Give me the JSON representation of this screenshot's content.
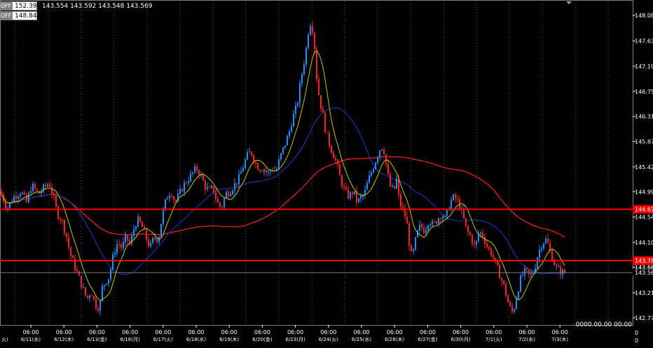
{
  "toolbar": {
    "ohlc_text": "143.554 143.592 143.548 143.569",
    "off_label": "OFF",
    "off_values": [
      "152.392",
      "148.841"
    ]
  },
  "timestamp": "0000.00.00 00:00",
  "colors": {
    "bull": "#1e90ff",
    "bear": "#ff2020",
    "ma_fast": "#c8c800",
    "ma_mid": "#1c3cc8",
    "ma_slow": "#ff2020",
    "hline": "#ff0000",
    "bid": "#808080"
  },
  "chart_data": {
    "type": "candlestick",
    "y_axis_labels": [
      "148.085",
      "147.635",
      "147.190",
      "146.750",
      "146.310",
      "145.870",
      "145.425",
      "144.990",
      "144.545",
      "144.100",
      "143.660",
      "143.569",
      "143.215",
      "142.775"
    ],
    "ylim": [
      142.65,
      148.33
    ],
    "x_axis_labels": [
      {
        "time": "06:00",
        "date": "6/11(水)"
      },
      {
        "time": "06:00",
        "date": "6/12(木)"
      },
      {
        "time": "06:00",
        "date": "6/13(金)"
      },
      {
        "time": "06:00",
        "date": "6/16(月)"
      },
      {
        "time": "06:00",
        "date": "6/17(火)"
      },
      {
        "time": "06:00",
        "date": "6/18(水)"
      },
      {
        "time": "06:00",
        "date": "6/19(木)"
      },
      {
        "time": "06:00",
        "date": "6/20(金)"
      },
      {
        "time": "06:00",
        "date": "6/23(月)"
      },
      {
        "time": "06:00",
        "date": "6/24(火)"
      },
      {
        "time": "06:00",
        "date": "6/25(水)"
      },
      {
        "time": "06:00",
        "date": "6/26(木)"
      },
      {
        "time": "06:00",
        "date": "6/27(金)"
      },
      {
        "time": "06:00",
        "date": "6/30(月)"
      },
      {
        "time": "06:00",
        "date": "7/1(火)"
      },
      {
        "time": "06:00",
        "date": "7/2(水)"
      },
      {
        "time": "06:00",
        "date": "7/3(木)"
      }
    ],
    "edge_labels": {
      "left_date_fragment": "火)",
      "right_value_1": "0",
      "right_value_2": "0"
    },
    "horizontal_lines": [
      {
        "value": 144.68,
        "label": "144.676"
      },
      {
        "value": 143.78,
        "label": "143.780"
      }
    ],
    "bid_line": {
      "value": 143.569,
      "label": "143.569"
    },
    "current_marker": {
      "value": 143.66,
      "label": "143.660"
    },
    "close_path": [
      [
        0,
        145.0
      ],
      [
        10,
        144.7
      ],
      [
        20,
        144.9
      ],
      [
        30,
        145.0
      ],
      [
        38,
        144.8
      ],
      [
        45,
        145.1
      ],
      [
        55,
        144.95
      ],
      [
        62,
        145.05
      ],
      [
        70,
        145.15
      ],
      [
        76,
        144.9
      ],
      [
        82,
        144.6
      ],
      [
        88,
        144.5
      ],
      [
        95,
        144.2
      ],
      [
        100,
        143.9
      ],
      [
        106,
        143.7
      ],
      [
        112,
        143.5
      ],
      [
        118,
        143.3
      ],
      [
        124,
        143.1
      ],
      [
        130,
        143.25
      ],
      [
        136,
        143.0
      ],
      [
        142,
        142.95
      ],
      [
        146,
        143.3
      ],
      [
        150,
        143.4
      ],
      [
        156,
        143.5
      ],
      [
        162,
        143.9
      ],
      [
        168,
        144.1
      ],
      [
        174,
        144.0
      ],
      [
        180,
        144.2
      ],
      [
        186,
        144.05
      ],
      [
        190,
        144.3
      ],
      [
        196,
        144.5
      ],
      [
        202,
        144.4
      ],
      [
        208,
        144.2
      ],
      [
        214,
        144.0
      ],
      [
        220,
        144.2
      ],
      [
        226,
        144.15
      ],
      [
        232,
        144.6
      ],
      [
        238,
        144.9
      ],
      [
        244,
        145.0
      ],
      [
        250,
        144.8
      ],
      [
        256,
        144.95
      ],
      [
        262,
        145.1
      ],
      [
        268,
        145.2
      ],
      [
        274,
        145.3
      ],
      [
        280,
        145.4
      ],
      [
        286,
        145.3
      ],
      [
        292,
        145.1
      ],
      [
        298,
        145.0
      ],
      [
        304,
        145.05
      ],
      [
        310,
        144.8
      ],
      [
        316,
        144.7
      ],
      [
        322,
        144.95
      ],
      [
        328,
        145.0
      ],
      [
        334,
        145.1
      ],
      [
        340,
        145.2
      ],
      [
        346,
        145.4
      ],
      [
        352,
        145.6
      ],
      [
        358,
        145.7
      ],
      [
        364,
        145.5
      ],
      [
        370,
        145.4
      ],
      [
        376,
        145.4
      ],
      [
        382,
        145.3
      ],
      [
        388,
        145.4
      ],
      [
        394,
        145.35
      ],
      [
        400,
        145.6
      ],
      [
        406,
        145.8
      ],
      [
        412,
        146.0
      ],
      [
        418,
        146.3
      ],
      [
        424,
        146.5
      ],
      [
        430,
        147.0
      ],
      [
        436,
        147.4
      ],
      [
        440,
        147.8
      ],
      [
        444,
        148.0
      ],
      [
        448,
        147.7
      ],
      [
        452,
        147.0
      ],
      [
        456,
        146.6
      ],
      [
        460,
        146.4
      ],
      [
        464,
        146.1
      ],
      [
        468,
        145.9
      ],
      [
        474,
        145.7
      ],
      [
        480,
        145.5
      ],
      [
        486,
        145.2
      ],
      [
        492,
        145.0
      ],
      [
        498,
        144.9
      ],
      [
        504,
        145.0
      ],
      [
        510,
        144.8
      ],
      [
        516,
        144.9
      ],
      [
        520,
        144.95
      ],
      [
        526,
        145.2
      ],
      [
        532,
        145.4
      ],
      [
        538,
        145.6
      ],
      [
        544,
        145.8
      ],
      [
        548,
        145.7
      ],
      [
        552,
        145.4
      ],
      [
        556,
        145.1
      ],
      [
        562,
        145.0
      ],
      [
        566,
        145.2
      ],
      [
        570,
        144.8
      ],
      [
        574,
        144.7
      ],
      [
        580,
        144.5
      ],
      [
        584,
        144.1
      ],
      [
        588,
        143.8
      ],
      [
        594,
        144.2
      ],
      [
        600,
        144.4
      ],
      [
        606,
        144.3
      ],
      [
        612,
        144.5
      ],
      [
        618,
        144.4
      ],
      [
        624,
        144.5
      ],
      [
        630,
        144.6
      ],
      [
        636,
        144.5
      ],
      [
        642,
        144.8
      ],
      [
        648,
        144.9
      ],
      [
        654,
        144.8
      ],
      [
        660,
        144.6
      ],
      [
        666,
        144.3
      ],
      [
        672,
        144.2
      ],
      [
        678,
        144.0
      ],
      [
        684,
        144.3
      ],
      [
        690,
        144.2
      ],
      [
        696,
        144.0
      ],
      [
        702,
        143.9
      ],
      [
        708,
        143.7
      ],
      [
        714,
        143.5
      ],
      [
        720,
        143.3
      ],
      [
        726,
        143.0
      ],
      [
        732,
        142.85
      ],
      [
        738,
        143.2
      ],
      [
        744,
        143.5
      ],
      [
        750,
        143.6
      ],
      [
        756,
        143.5
      ],
      [
        762,
        143.6
      ],
      [
        768,
        143.9
      ],
      [
        774,
        144.1
      ],
      [
        780,
        144.15
      ],
      [
        786,
        143.9
      ],
      [
        792,
        143.7
      ],
      [
        798,
        143.6
      ],
      [
        804,
        143.57
      ],
      [
        808,
        143.569
      ]
    ]
  }
}
